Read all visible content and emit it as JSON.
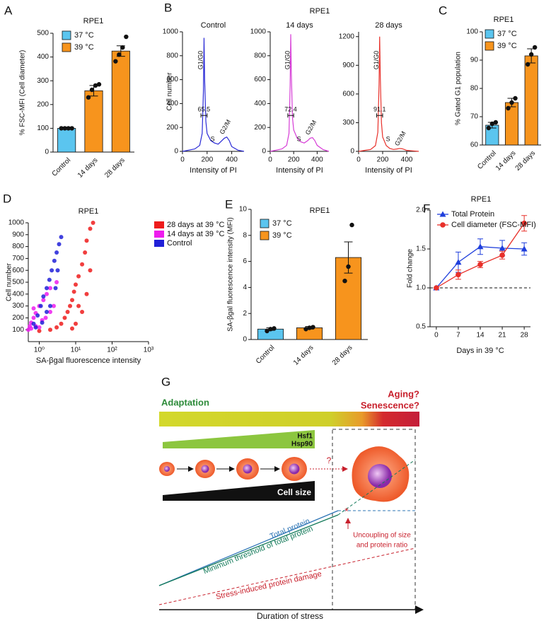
{
  "chart_data": [
    {
      "panel": "A",
      "type": "bar",
      "title": "RPE1",
      "y_label": "% FSC-MFI (Cell diameter)",
      "categories": [
        "Control",
        "14 days",
        "28 days"
      ],
      "series": [
        {
          "name": "37 °C",
          "color": "#5bc5ef",
          "values": [
            100,
            null,
            null
          ],
          "errors": [
            1,
            null,
            null
          ]
        },
        {
          "name": "39 °C",
          "color": "#f7941d",
          "values": [
            null,
            258,
            425
          ],
          "errors": [
            null,
            22,
            22
          ]
        }
      ],
      "points": [
        [
          100,
          100,
          100,
          100
        ],
        [
          230,
          262,
          280,
          285
        ],
        [
          382,
          410,
          440,
          485
        ]
      ],
      "ylim": [
        0,
        500
      ],
      "yticks": [
        0,
        100,
        200,
        300,
        400,
        500
      ]
    },
    {
      "panel": "B",
      "type": "line",
      "title": "RPE1",
      "y_label": "Cell number",
      "x_label": "Intensity of PI",
      "x": [
        0,
        50,
        100,
        140,
        160,
        170,
        175,
        180,
        190,
        200,
        230,
        260,
        290,
        320,
        340,
        360,
        380,
        400,
        450,
        500
      ],
      "xlim": [
        0,
        500
      ],
      "xticks": [
        0,
        200,
        400
      ],
      "annotations": [
        "G1/G0",
        "S",
        "G2/M"
      ],
      "subplots": [
        {
          "title": "Control",
          "color": "#2b2bd6",
          "gate": 65.5,
          "ylim": [
            0,
            1000
          ],
          "yticks": [
            0,
            200,
            400,
            600,
            800,
            1000
          ],
          "values": [
            0,
            10,
            20,
            50,
            150,
            500,
            950,
            600,
            250,
            150,
            90,
            70,
            60,
            90,
            110,
            120,
            90,
            40,
            10,
            0
          ]
        },
        {
          "title": "14 days",
          "color": "#d63cd6",
          "gate": 72.4,
          "ylim": [
            0,
            1000
          ],
          "yticks": [
            0,
            200,
            400,
            600,
            800,
            1000
          ],
          "values": [
            0,
            10,
            20,
            50,
            150,
            550,
            980,
            650,
            280,
            180,
            110,
            80,
            70,
            90,
            110,
            115,
            90,
            50,
            15,
            0
          ]
        },
        {
          "title": "28 days",
          "color": "#e8302a",
          "gate": 91.1,
          "ylim": [
            0,
            1250
          ],
          "yticks": [
            0,
            300,
            600,
            900,
            1200
          ],
          "values": [
            0,
            10,
            20,
            60,
            200,
            700,
            1200,
            800,
            300,
            150,
            60,
            30,
            20,
            25,
            30,
            28,
            20,
            10,
            5,
            0
          ]
        }
      ]
    },
    {
      "panel": "C",
      "type": "bar",
      "title": "RPE1",
      "y_label": "% Gated G1 population",
      "categories": [
        "Control",
        "14 days",
        "28 days"
      ],
      "series": [
        {
          "name": "37 °C",
          "color": "#5bc5ef",
          "values": [
            67,
            null,
            null
          ],
          "errors": [
            1,
            null,
            null
          ]
        },
        {
          "name": "39 °C",
          "color": "#f7941d",
          "values": [
            null,
            75,
            91.5
          ],
          "errors": [
            null,
            1.5,
            2.5
          ]
        }
      ],
      "points": [
        [
          66,
          67.5,
          68
        ],
        [
          73,
          75,
          76.5
        ],
        [
          88.5,
          92,
          94.5
        ]
      ],
      "ylim": [
        60,
        100
      ],
      "yticks": [
        60,
        70,
        80,
        90,
        100
      ]
    },
    {
      "panel": "D",
      "type": "scatter",
      "title": "RPE1",
      "y_label": "Cell number",
      "x_label": "SA-βgal fluorescence intensity",
      "xlog": true,
      "xlim": [
        0.5,
        1000
      ],
      "xticks": [
        {
          "value": 1,
          "label": "10⁰"
        },
        {
          "value": 10,
          "label": "10¹"
        },
        {
          "value": 100,
          "label": "10²"
        },
        {
          "value": 1000,
          "label": "10³"
        }
      ],
      "ylim": [
        0,
        1000
      ],
      "yticks": [
        100,
        200,
        300,
        400,
        500,
        600,
        700,
        800,
        900,
        1000
      ],
      "series": [
        {
          "name": "28 days at 39 °C",
          "color": "#ee1c1c",
          "x": [
            1.0,
            2,
            3,
            4,
            5,
            6,
            7,
            8,
            9,
            10,
            12,
            15,
            18,
            20,
            25,
            30,
            10,
            15,
            20,
            8,
            25,
            12
          ],
          "values": [
            90,
            100,
            120,
            150,
            200,
            250,
            300,
            350,
            420,
            480,
            550,
            650,
            750,
            850,
            950,
            1000,
            150,
            250,
            400,
            110,
            600,
            300
          ]
        },
        {
          "name": "14 days at 39 °C",
          "color": "#ee1cee",
          "x": [
            0.5,
            0.55,
            0.6,
            0.7,
            0.8,
            1.0,
            1.3,
            1.6,
            2.0,
            0.6,
            0.8,
            1.2,
            2.5,
            0.7,
            3,
            1.0,
            1.5,
            2
          ],
          "values": [
            100,
            130,
            160,
            200,
            240,
            300,
            350,
            400,
            450,
            110,
            130,
            180,
            300,
            280,
            500,
            120,
            200,
            250
          ]
        },
        {
          "name": "Control",
          "color": "#2020d8",
          "x": [
            0.7,
            0.9,
            1.1,
            1.3,
            1.6,
            1.9,
            2.2,
            2.6,
            3.0,
            3.5,
            4.0,
            1.2,
            2.0,
            2.8,
            1.6,
            3.2,
            0.8
          ],
          "values": [
            150,
            220,
            300,
            380,
            450,
            520,
            600,
            680,
            750,
            820,
            880,
            160,
            300,
            450,
            250,
            600,
            120
          ]
        }
      ]
    },
    {
      "panel": "E",
      "type": "bar",
      "title": "RPE1",
      "y_label": "SA-βgal fluorescence intensity (MFI)",
      "categories": [
        "Control",
        "14 days",
        "28 days"
      ],
      "series": [
        {
          "name": "37 °C",
          "color": "#5bc5ef",
          "values": [
            0.8,
            null,
            null
          ],
          "errors": [
            0.1,
            null,
            null
          ]
        },
        {
          "name": "39 °C",
          "color": "#f7941d",
          "values": [
            null,
            0.9,
            6.3
          ],
          "errors": [
            null,
            0.1,
            1.2
          ]
        }
      ],
      "points": [
        [
          0.65,
          0.8,
          0.85
        ],
        [
          0.8,
          0.9,
          0.95
        ],
        [
          4.5,
          5.6,
          8.8
        ]
      ],
      "ylim": [
        0,
        10
      ],
      "yticks": [
        0,
        2,
        4,
        6,
        8,
        10
      ]
    },
    {
      "panel": "F",
      "type": "line",
      "title": "RPE1",
      "y_label": "Fold change",
      "x_label": "Days in 39 °C",
      "x": [
        0,
        7,
        14,
        21,
        28
      ],
      "xlim": [
        -2,
        30
      ],
      "xticks": [
        0,
        7,
        14,
        21,
        28
      ],
      "ylim": [
        0.5,
        2.0
      ],
      "yticks": [
        0.5,
        {
          "value": 1,
          "label": "1.0"
        },
        1.5,
        {
          "value": 2,
          "label": "2.0"
        }
      ],
      "hline": 1.0,
      "series": [
        {
          "name": "Total Protein",
          "color": "#1f3fdc",
          "marker": "triangle",
          "values": [
            1.0,
            1.33,
            1.53,
            1.51,
            1.5
          ],
          "errors": [
            0,
            0.13,
            0.1,
            0.1,
            0.08
          ]
        },
        {
          "name": "Cell diameter (FSC-MFI)",
          "color": "#e8302a",
          "marker": "circle",
          "values": [
            1.0,
            1.17,
            1.3,
            1.42,
            1.83
          ],
          "errors": [
            0,
            0.06,
            0.04,
            0.05,
            0.1
          ]
        }
      ]
    }
  ],
  "diagram": {
    "label": "G",
    "adaptation": "Adaptation",
    "aging": "Aging?",
    "senescence": "Senescence?",
    "chaperones": [
      "Hsf1",
      "Hsp90"
    ],
    "cell_size": "Cell size",
    "question": "?",
    "total_protein": "Total protein",
    "threshold": "Minimum threshold of total protein",
    "damage": "Stress-induced protein damage",
    "marker": "*",
    "uncoupling": [
      "Uncoupling of size",
      "and protein ratio"
    ],
    "x_axis": "Duration of stress"
  }
}
